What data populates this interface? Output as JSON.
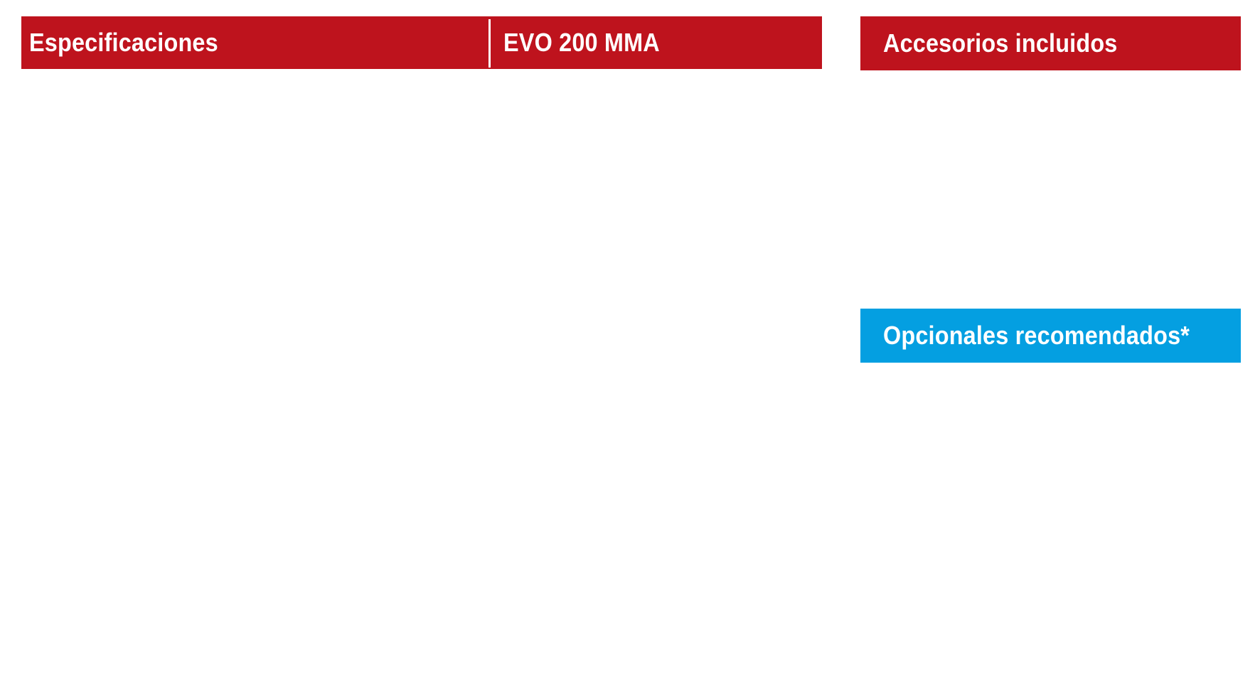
{
  "specifications": {
    "header_label": "Especificaciones",
    "model_label": "EVO 200 MMA"
  },
  "included_accessories": {
    "header_label": "Accesorios incluidos"
  },
  "recommended_optionals": {
    "header_label": "Opcionales recomendados*"
  },
  "colors": {
    "red_header": "#be131d",
    "blue_header": "#049fe1",
    "background": "#ffffff",
    "header_text": "#ffffff"
  }
}
